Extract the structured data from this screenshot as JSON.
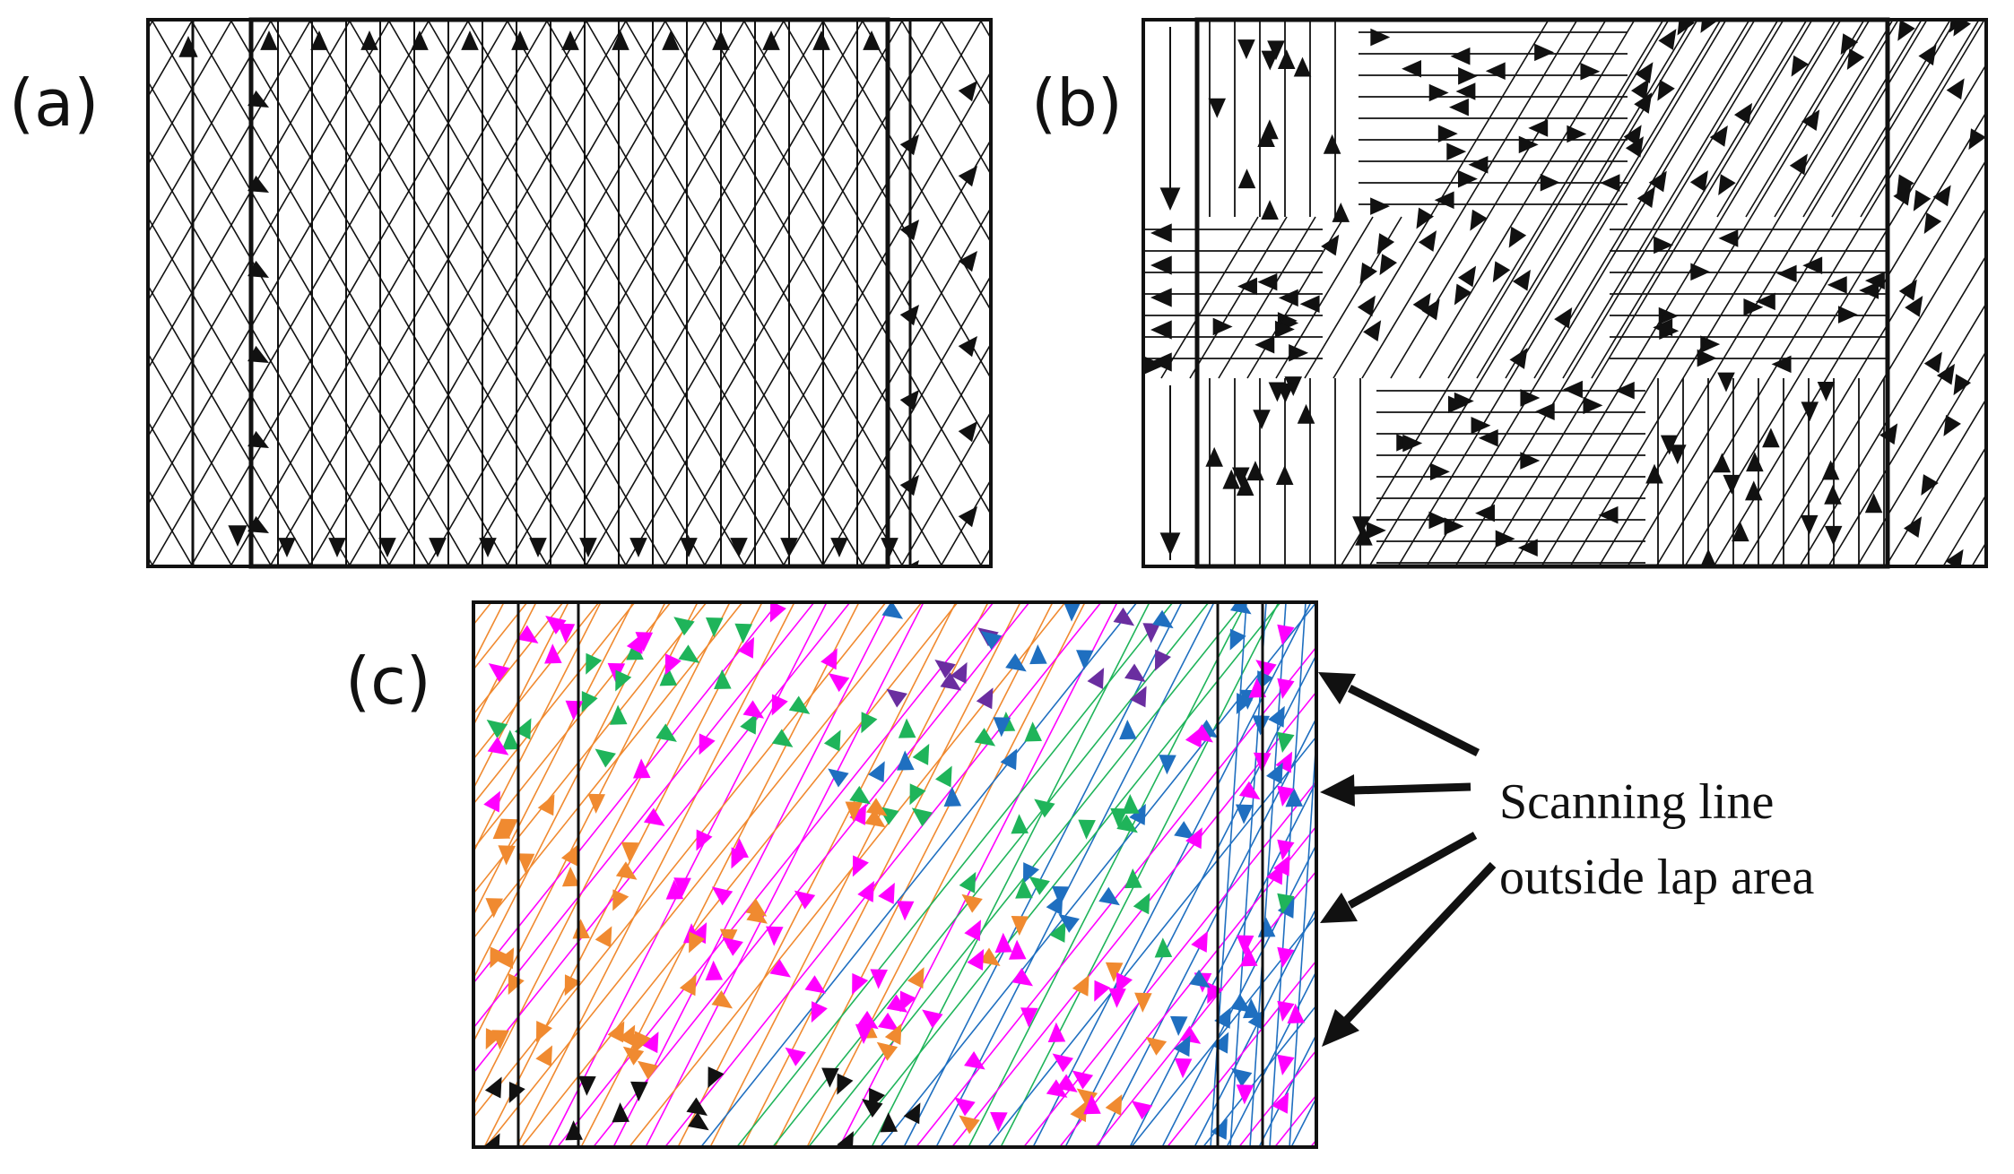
{
  "figure": {
    "panels": [
      {
        "id": "a",
        "label": "(a)",
        "pattern": "diagonal-crosshatch"
      },
      {
        "id": "b",
        "label": "(b)",
        "pattern": "block-island-rotation"
      },
      {
        "id": "c",
        "label": "(c)",
        "pattern": "multi-color-rotated"
      }
    ],
    "annotation": {
      "lines": [
        "Scanning line",
        "outside lap area"
      ],
      "arrow_count": 4
    },
    "colors": {
      "ink": "#111111",
      "magenta": "#ff00ff",
      "orange": "#f08a30",
      "green": "#1fb45a",
      "blue": "#1f6fc0",
      "purple": "#6a2ea0",
      "dark_red": "#b01010"
    }
  }
}
